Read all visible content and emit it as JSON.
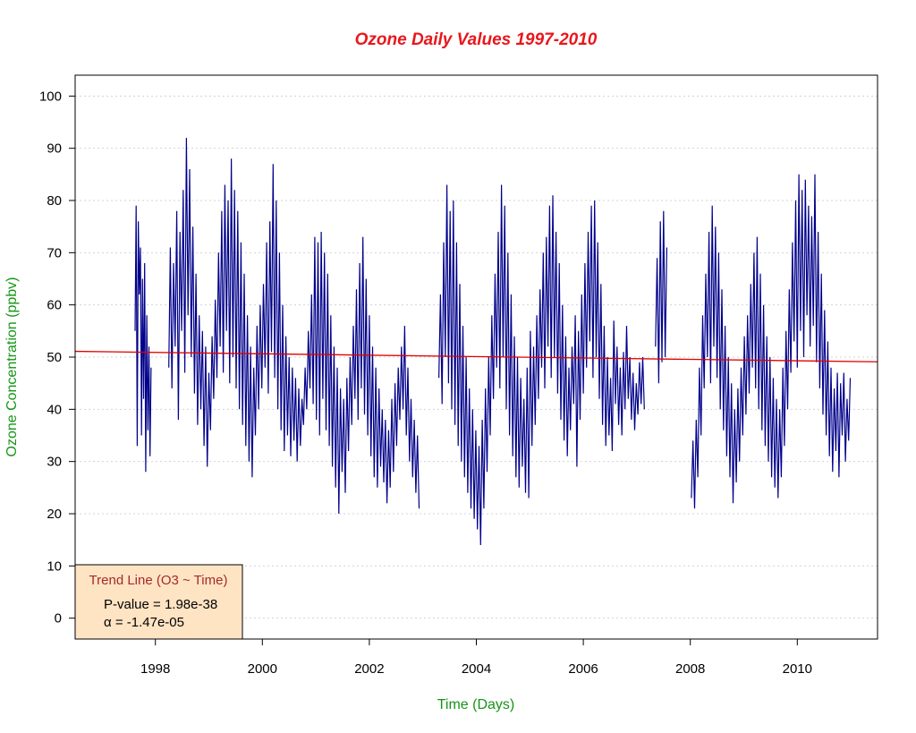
{
  "chart_data": {
    "type": "line",
    "title": "Ozone Daily Values 1997-2010",
    "xlabel": "Time (Days)",
    "ylabel": "Ozone Concentration (ppbv)",
    "xlim": [
      1996.5,
      2011.5
    ],
    "ylim": [
      -4,
      104
    ],
    "x_ticks": [
      1998,
      2000,
      2002,
      2004,
      2006,
      2008,
      2010
    ],
    "x_tick_labels": [
      "1998",
      "2000",
      "2002",
      "2004",
      "2006",
      "2008",
      "2010"
    ],
    "y_ticks": [
      0,
      10,
      20,
      30,
      40,
      50,
      60,
      70,
      80,
      90,
      100
    ],
    "y_tick_labels": [
      "0",
      "10",
      "20",
      "30",
      "40",
      "50",
      "60",
      "70",
      "80",
      "90",
      "100"
    ],
    "grid": "horizontal dotted",
    "series": [
      {
        "type": "line",
        "color": "#00008B",
        "segments": [
          {
            "x": [
              1997.62,
              1997.64,
              1997.66,
              1997.68,
              1997.7,
              1997.72,
              1997.74,
              1997.76,
              1997.78,
              1997.8,
              1997.82,
              1997.84,
              1997.86,
              1997.88,
              1997.9,
              1997.92
            ],
            "y": [
              55,
              79,
              33,
              76,
              62,
              71,
              35,
              65,
              42,
              68,
              28,
              58,
              36,
              52,
              31,
              48
            ]
          },
          {
            "x": [
              1998.25,
              1998.28,
              1998.31,
              1998.34,
              1998.37,
              1998.4,
              1998.43,
              1998.46,
              1998.49,
              1998.52,
              1998.55,
              1998.58,
              1998.61,
              1998.64,
              1998.67,
              1998.7,
              1998.73,
              1998.76,
              1998.79,
              1998.82,
              1998.85,
              1998.88,
              1998.91,
              1998.94,
              1998.97,
              1999.0,
              1999.03,
              1999.06,
              1999.09,
              1999.12,
              1999.15,
              1999.18,
              1999.21,
              1999.24,
              1999.27,
              1999.3,
              1999.33,
              1999.36,
              1999.39,
              1999.42,
              1999.45,
              1999.48,
              1999.51,
              1999.54,
              1999.57,
              1999.6,
              1999.63,
              1999.66,
              1999.69,
              1999.72,
              1999.75,
              1999.78,
              1999.81,
              1999.84,
              1999.87,
              1999.9,
              1999.93,
              1999.96,
              1999.99,
              2000.02,
              2000.05,
              2000.08,
              2000.11,
              2000.14,
              2000.17,
              2000.2,
              2000.23,
              2000.26,
              2000.29,
              2000.32,
              2000.35,
              2000.38,
              2000.41,
              2000.44,
              2000.47,
              2000.5,
              2000.53,
              2000.56,
              2000.59,
              2000.62,
              2000.65,
              2000.68,
              2000.71,
              2000.74,
              2000.77,
              2000.8,
              2000.83,
              2000.86,
              2000.89,
              2000.92,
              2000.95,
              2000.98,
              2001.01,
              2001.04,
              2001.07,
              2001.1,
              2001.13,
              2001.16,
              2001.19,
              2001.22,
              2001.25,
              2001.28,
              2001.31,
              2001.34,
              2001.37,
              2001.4,
              2001.43,
              2001.46,
              2001.49,
              2001.52,
              2001.55,
              2001.58,
              2001.61,
              2001.64,
              2001.67,
              2001.7,
              2001.73,
              2001.76,
              2001.79,
              2001.82,
              2001.85,
              2001.88,
              2001.91,
              2001.94,
              2001.97,
              2002.0,
              2002.03,
              2002.06,
              2002.09,
              2002.12,
              2002.15,
              2002.18,
              2002.21,
              2002.24,
              2002.27,
              2002.3,
              2002.33,
              2002.36,
              2002.39,
              2002.42,
              2002.45,
              2002.48,
              2002.51,
              2002.54,
              2002.57,
              2002.6,
              2002.63,
              2002.66,
              2002.69,
              2002.72,
              2002.75,
              2002.78,
              2002.81,
              2002.84,
              2002.87,
              2002.9,
              2002.93
            ],
            "y": [
              48,
              71,
              44,
              68,
              52,
              78,
              38,
              74,
              55,
              82,
              47,
              92,
              58,
              86,
              50,
              75,
              43,
              66,
              37,
              58,
              40,
              55,
              33,
              52,
              29,
              47,
              36,
              54,
              42,
              61,
              46,
              70,
              52,
              78,
              47,
              83,
              55,
              80,
              45,
              88,
              50,
              82,
              44,
              78,
              40,
              72,
              37,
              66,
              33,
              58,
              30,
              52,
              27,
              48,
              35,
              56,
              40,
              60,
              44,
              64,
              48,
              72,
              43,
              76,
              51,
              87,
              46,
              80,
              40,
              70,
              36,
              60,
              32,
              54,
              35,
              50,
              31,
              48,
              34,
              46,
              30,
              44,
              33,
              42,
              37,
              48,
              40,
              55,
              44,
              62,
              41,
              73,
              38,
              72,
              35,
              74,
              42,
              70,
              36,
              66,
              33,
              58,
              29,
              52,
              25,
              48,
              20,
              44,
              28,
              42,
              24,
              46,
              32,
              50,
              37,
              56,
              42,
              63,
              38,
              68,
              44,
              73,
              39,
              65,
              35,
              58,
              31,
              52,
              27,
              48,
              25,
              44,
              29,
              40,
              26,
              38,
              22,
              36,
              25,
              42,
              28,
              45,
              33,
              48,
              38,
              52,
              40,
              56,
              35,
              48,
              30,
              42,
              27,
              38,
              24,
              35,
              21
            ]
          },
          {
            "x": [
              2003.3,
              2003.33,
              2003.36,
              2003.39,
              2003.42,
              2003.45,
              2003.48,
              2003.51,
              2003.54,
              2003.57,
              2003.6,
              2003.63,
              2003.66,
              2003.69,
              2003.72,
              2003.75,
              2003.78,
              2003.81,
              2003.84,
              2003.87,
              2003.9,
              2003.93,
              2003.96,
              2003.99,
              2004.02,
              2004.05,
              2004.08,
              2004.11,
              2004.14,
              2004.17,
              2004.2,
              2004.23,
              2004.26,
              2004.29,
              2004.32,
              2004.35,
              2004.38,
              2004.41,
              2004.44,
              2004.47,
              2004.5,
              2004.53,
              2004.56,
              2004.59,
              2004.62,
              2004.65,
              2004.68,
              2004.71,
              2004.74,
              2004.77,
              2004.8,
              2004.83,
              2004.86,
              2004.89,
              2004.92,
              2004.95,
              2004.98,
              2005.01,
              2005.04,
              2005.07,
              2005.1,
              2005.13,
              2005.16,
              2005.19,
              2005.22,
              2005.25,
              2005.28,
              2005.31,
              2005.34,
              2005.37,
              2005.4,
              2005.43,
              2005.46,
              2005.49,
              2005.52,
              2005.55,
              2005.58,
              2005.61,
              2005.64,
              2005.67,
              2005.7,
              2005.73,
              2005.76,
              2005.79,
              2005.82,
              2005.85,
              2005.88,
              2005.91,
              2005.94,
              2005.97,
              2006.0,
              2006.03,
              2006.06,
              2006.09,
              2006.12,
              2006.15,
              2006.18,
              2006.21,
              2006.24,
              2006.27,
              2006.3,
              2006.33,
              2006.36,
              2006.39,
              2006.42,
              2006.45,
              2006.48,
              2006.51,
              2006.54,
              2006.57,
              2006.6,
              2006.63,
              2006.66,
              2006.69,
              2006.72,
              2006.75,
              2006.78,
              2006.81,
              2006.84,
              2006.87,
              2006.9,
              2006.93,
              2006.96,
              2006.99,
              2007.02,
              2007.05,
              2007.08,
              2007.11,
              2007.14
            ],
            "y": [
              46,
              62,
              41,
              72,
              50,
              83,
              45,
              78,
              40,
              80,
              37,
              72,
              33,
              64,
              30,
              56,
              27,
              50,
              24,
              44,
              21,
              40,
              19,
              36,
              17,
              33,
              14,
              38,
              21,
              44,
              28,
              50,
              35,
              58,
              42,
              66,
              48,
              74,
              44,
              83,
              50,
              79,
              40,
              70,
              35,
              62,
              31,
              54,
              27,
              50,
              25,
              46,
              29,
              42,
              24,
              48,
              23,
              55,
              33,
              52,
              37,
              58,
              42,
              63,
              48,
              70,
              44,
              73,
              52,
              79,
              46,
              81,
              50,
              74,
              43,
              68,
              38,
              60,
              34,
              54,
              31,
              48,
              36,
              52,
              41,
              58,
              29,
              55,
              38,
              62,
              43,
              68,
              48,
              74,
              53,
              79,
              46,
              80,
              50,
              72,
              42,
              64,
              37,
              56,
              33,
              50,
              35,
              46,
              32,
              57,
              41,
              52,
              37,
              48,
              35,
              51,
              40,
              56,
              42,
              50,
              38,
              47,
              36,
              45,
              39,
              49,
              41,
              50,
              40
            ]
          },
          {
            "x": [
              2007.35,
              2007.38,
              2007.41,
              2007.44,
              2007.47,
              2007.5,
              2007.53,
              2007.56
            ],
            "y": [
              52,
              69,
              45,
              76,
              49,
              78,
              50,
              71
            ]
          },
          {
            "x": [
              2008.02,
              2008.05,
              2008.08,
              2008.11,
              2008.14,
              2008.17,
              2008.2,
              2008.23,
              2008.26,
              2008.29,
              2008.32,
              2008.35,
              2008.38,
              2008.41,
              2008.44,
              2008.47,
              2008.5,
              2008.53,
              2008.56,
              2008.59,
              2008.62,
              2008.65,
              2008.68,
              2008.71,
              2008.74,
              2008.77,
              2008.8,
              2008.83,
              2008.86,
              2008.89,
              2008.92,
              2008.95,
              2008.98,
              2009.01,
              2009.04,
              2009.07,
              2009.1,
              2009.13,
              2009.16,
              2009.19,
              2009.22,
              2009.25,
              2009.28,
              2009.31,
              2009.34,
              2009.37,
              2009.4,
              2009.43,
              2009.46,
              2009.49,
              2009.52,
              2009.55,
              2009.58,
              2009.61,
              2009.64,
              2009.67,
              2009.7,
              2009.73,
              2009.76,
              2009.79,
              2009.82,
              2009.85,
              2009.88,
              2009.91,
              2009.94,
              2009.97,
              2010.0,
              2010.03,
              2010.06,
              2010.09,
              2010.12,
              2010.15,
              2010.18,
              2010.21,
              2010.24,
              2010.27,
              2010.3,
              2010.33,
              2010.36,
              2010.39,
              2010.42,
              2010.45,
              2010.48,
              2010.51,
              2010.54,
              2010.57,
              2010.6,
              2010.63,
              2010.66,
              2010.69,
              2010.72,
              2010.75,
              2010.78,
              2010.81,
              2010.84,
              2010.87,
              2010.9,
              2010.93,
              2010.96,
              2010.99
            ],
            "y": [
              23,
              34,
              21,
              38,
              27,
              48,
              35,
              58,
              44,
              66,
              50,
              74,
              45,
              79,
              52,
              75,
              46,
              70,
              40,
              63,
              36,
              56,
              31,
              50,
              27,
              45,
              22,
              40,
              26,
              44,
              30,
              48,
              35,
              54,
              39,
              58,
              43,
              64,
              48,
              70,
              44,
              73,
              40,
              66,
              36,
              60,
              33,
              54,
              30,
              50,
              27,
              46,
              25,
              42,
              23,
              40,
              27,
              48,
              33,
              55,
              40,
              63,
              47,
              72,
              53,
              80,
              48,
              85,
              55,
              82,
              50,
              84,
              58,
              79,
              52,
              77,
              56,
              85,
              49,
              74,
              44,
              66,
              39,
              59,
              35,
              53,
              31,
              48,
              28,
              44,
              32,
              47,
              27,
              45,
              35,
              47,
              30,
              42,
              34,
              46
            ]
          }
        ]
      },
      {
        "type": "trend",
        "color": "#E00000",
        "x": [
          1996.5,
          2011.5
        ],
        "y": [
          51.1,
          49.1
        ]
      }
    ],
    "legend": {
      "position": "bottom-left",
      "title": "Trend Line (O3 ~ Time)",
      "lines": [
        "P-value = 1.98e-38",
        "α = -1.47e-05"
      ]
    }
  },
  "colors": {
    "title": "#E8171C",
    "axis_label": "#159515",
    "series": "#00008B",
    "trend": "#E00000",
    "legend_bg": "#FFE4C4",
    "legend_title": "#A52A2A",
    "grid": "#D3D3D3"
  }
}
